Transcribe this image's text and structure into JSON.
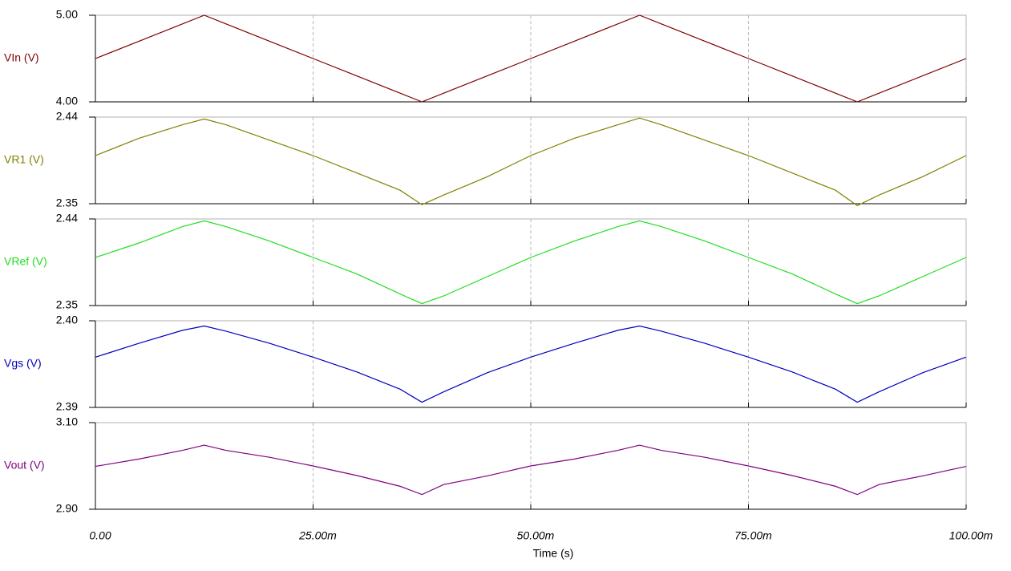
{
  "chart_data": [
    {
      "type": "line",
      "ylabel": "VIn (V)",
      "color": "#800000",
      "x": [
        0,
        0.005,
        0.01,
        0.0125,
        0.015,
        0.02,
        0.025,
        0.03,
        0.035,
        0.0375,
        0.04,
        0.045,
        0.05,
        0.055,
        0.06,
        0.0625,
        0.065,
        0.07,
        0.075,
        0.08,
        0.085,
        0.0875,
        0.09,
        0.095,
        0.1
      ],
      "values": [
        4.5,
        4.7,
        4.9,
        5.0,
        4.9,
        4.7,
        4.5,
        4.3,
        4.1,
        4.0,
        4.1,
        4.3,
        4.5,
        4.7,
        4.9,
        5.0,
        4.9,
        4.7,
        4.5,
        4.3,
        4.1,
        4.0,
        4.1,
        4.3,
        4.5
      ],
      "xlim": [
        0,
        0.1
      ],
      "ylim": [
        4,
        5
      ],
      "yticks": [
        {
          "value": 4,
          "label": "4.00"
        },
        {
          "value": 5,
          "label": "5.00"
        }
      ]
    },
    {
      "type": "line",
      "ylabel": "VR1 (V)",
      "color": "#808000",
      "x": [
        0,
        0.005,
        0.01,
        0.0125,
        0.015,
        0.02,
        0.025,
        0.03,
        0.035,
        0.0375,
        0.04,
        0.045,
        0.05,
        0.055,
        0.06,
        0.0625,
        0.065,
        0.07,
        0.075,
        0.08,
        0.085,
        0.0875,
        0.09,
        0.095,
        0.1
      ],
      "values": [
        2.4,
        2.418,
        2.432,
        2.438,
        2.432,
        2.416,
        2.4,
        2.382,
        2.364,
        2.349,
        2.359,
        2.378,
        2.4,
        2.418,
        2.432,
        2.439,
        2.432,
        2.416,
        2.4,
        2.382,
        2.364,
        2.348,
        2.359,
        2.378,
        2.4
      ],
      "xlim": [
        0,
        0.1
      ],
      "ylim": [
        2.35,
        2.44
      ],
      "yticks": [
        2.35,
        2.44
      ]
    },
    {
      "type": "line",
      "ylabel": "VRef (V)",
      "color": "#22dd22",
      "x": [
        0,
        0.005,
        0.01,
        0.0125,
        0.015,
        0.02,
        0.025,
        0.03,
        0.035,
        0.0375,
        0.04,
        0.045,
        0.05,
        0.055,
        0.06,
        0.0625,
        0.065,
        0.07,
        0.075,
        0.08,
        0.085,
        0.0875,
        0.09,
        0.095,
        0.1
      ],
      "values": [
        2.4,
        2.415,
        2.432,
        2.438,
        2.432,
        2.417,
        2.4,
        2.383,
        2.362,
        2.352,
        2.36,
        2.38,
        2.4,
        2.417,
        2.432,
        2.438,
        2.432,
        2.417,
        2.4,
        2.383,
        2.362,
        2.352,
        2.36,
        2.38,
        2.4
      ],
      "xlim": [
        0,
        0.1
      ],
      "ylim": [
        2.35,
        2.44
      ],
      "yticks": [
        2.35,
        2.44
      ]
    },
    {
      "type": "line",
      "ylabel": "Vgs (V)",
      "color": "#0000c0",
      "x": [
        0,
        0.005,
        0.01,
        0.0125,
        0.015,
        0.02,
        0.025,
        0.03,
        0.035,
        0.0375,
        0.04,
        0.045,
        0.05,
        0.055,
        0.06,
        0.0625,
        0.065,
        0.07,
        0.075,
        0.08,
        0.085,
        0.0875,
        0.09,
        0.095,
        0.1
      ],
      "values": [
        2.3958,
        2.3974,
        2.3989,
        2.3994,
        2.3988,
        2.3974,
        2.3958,
        2.3941,
        2.3921,
        2.3906,
        2.3918,
        2.394,
        2.3958,
        2.3974,
        2.3989,
        2.3994,
        2.3988,
        2.3974,
        2.3958,
        2.3941,
        2.3921,
        2.3906,
        2.3918,
        2.394,
        2.3958
      ],
      "xlim": [
        0,
        0.1
      ],
      "ylim": [
        2.39,
        2.4
      ],
      "yticks": [
        2.39,
        {
          "value": 2.4,
          "label": "2.40"
        }
      ]
    },
    {
      "type": "line",
      "ylabel": "Vout (V)",
      "color": "#800080",
      "x": [
        0,
        0.005,
        0.01,
        0.0125,
        0.015,
        0.02,
        0.025,
        0.03,
        0.035,
        0.0375,
        0.04,
        0.045,
        0.05,
        0.055,
        0.06,
        0.0625,
        0.065,
        0.07,
        0.075,
        0.08,
        0.085,
        0.0875,
        0.09,
        0.095,
        0.1
      ],
      "values": [
        2.999,
        3.016,
        3.036,
        3.048,
        3.036,
        3.02,
        3.0,
        2.978,
        2.953,
        2.934,
        2.957,
        2.977,
        3.0,
        3.016,
        3.036,
        3.048,
        3.036,
        3.02,
        3.0,
        2.978,
        2.953,
        2.934,
        2.957,
        2.977,
        2.999
      ],
      "xlim": [
        0,
        0.1
      ],
      "ylim": [
        2.9,
        3.1
      ],
      "yticks": [
        {
          "value": 2.9,
          "label": "2.90"
        },
        {
          "value": 3.1,
          "label": "3.10"
        }
      ],
      "xticks": [
        {
          "value": 0,
          "label": "0.00"
        },
        {
          "value": 0.025,
          "label": "25.00m"
        },
        {
          "value": 0.05,
          "label": "50.00m"
        },
        {
          "value": 0.075,
          "label": "75.00m"
        },
        {
          "value": 0.1,
          "label": "100.00m"
        }
      ],
      "xlabel": "Time (s)"
    }
  ]
}
